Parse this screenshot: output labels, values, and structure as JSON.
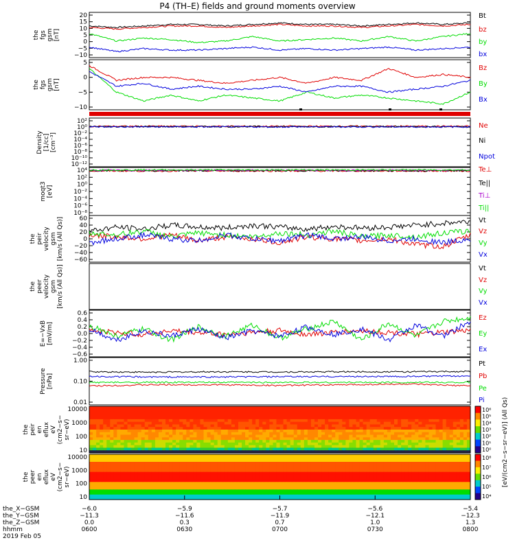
{
  "title": "P4 (TH–E) fields and ground moments overview",
  "colors": {
    "black": "#000000",
    "red": "#e00000",
    "green": "#00dd00",
    "blue": "#0000dd",
    "purple": "#aa00cc",
    "grey": "#888888",
    "orange": "#ff7700"
  },
  "chart_data": [
    {
      "type": "line",
      "ylabel": [
        "the",
        "fgs",
        "gsm",
        "[nT]"
      ],
      "yticks": [
        "20",
        "15",
        "10",
        "5",
        "0",
        "−5",
        "−10"
      ],
      "ylim": [
        -10,
        20
      ],
      "series": [
        {
          "name": "Bt",
          "color": "black",
          "values": [
            11,
            10,
            11,
            12,
            12,
            11,
            12,
            13,
            12,
            12,
            11,
            12,
            13,
            12,
            13
          ]
        },
        {
          "name": "bz",
          "color": "red",
          "values": [
            10,
            9,
            10,
            11,
            11,
            10,
            11,
            12,
            11,
            11,
            10,
            11,
            12,
            11,
            12
          ]
        },
        {
          "name": "by",
          "color": "green",
          "values": [
            6,
            1,
            3,
            2,
            0,
            1,
            4,
            1,
            2,
            3,
            1,
            4,
            1,
            4,
            6
          ]
        },
        {
          "name": "bx",
          "color": "blue",
          "values": [
            -3,
            -6,
            -4,
            -5,
            -5,
            -4,
            -3,
            -5,
            -4,
            -5,
            -4,
            -3,
            -5,
            -4,
            -3
          ]
        }
      ]
    },
    {
      "type": "line",
      "ylabel": [
        "the",
        "fgs",
        "gsm",
        "[nT]"
      ],
      "yticks": [
        "5",
        "0",
        "−5",
        "−10"
      ],
      "ylim": [
        -12,
        5
      ],
      "series": [
        {
          "name": "Bz",
          "color": "red",
          "values": [
            3,
            -2,
            -1,
            -1,
            -2,
            -3,
            -2,
            -1,
            -3,
            -1,
            -2,
            2,
            -1,
            0,
            -1
          ]
        },
        {
          "name": "By",
          "color": "green",
          "values": [
            2,
            -6,
            -9,
            -7,
            -9,
            -7,
            -8,
            -9,
            -6,
            -8,
            -7,
            -8,
            -9,
            -10,
            -6
          ]
        },
        {
          "name": "Bx",
          "color": "blue",
          "values": [
            1,
            -4,
            -3,
            -5,
            -4,
            -5,
            -5,
            -4,
            -6,
            -4,
            -4,
            -6,
            -5,
            -4,
            -2
          ]
        }
      ]
    },
    {
      "type": "line",
      "ylabel": [
        "Density",
        "[1/cc]",
        "[cm⁻³]"
      ],
      "yticks": [
        "10²",
        "10⁰",
        "10⁻²",
        "10⁻⁴",
        "10⁻⁶",
        "10⁻⁸",
        "10⁻¹⁰",
        "10⁻¹²"
      ],
      "log": true,
      "ylim": [
        -13,
        3
      ],
      "series": [
        {
          "name": "Ne",
          "color": "red",
          "values": [
            0.3,
            0.3,
            0.3,
            0.3,
            0.3,
            0.3,
            0.3
          ]
        },
        {
          "name": "Ni",
          "color": "black",
          "values": [
            0.2,
            0.2,
            0.2,
            0.2,
            0.2,
            0.2,
            0.2
          ]
        },
        {
          "name": "Npot",
          "color": "blue",
          "values": [
            0.1,
            0.1,
            0.1,
            0.1,
            0.1,
            0.1,
            0.1
          ]
        }
      ]
    },
    {
      "type": "line",
      "ylabel": [
        "moqt3",
        "[eV]"
      ],
      "yticks": [
        "10⁴",
        "10²",
        "10⁰",
        "10⁻²",
        "10⁻⁴",
        "10⁻⁶",
        "10⁻⁸"
      ],
      "log": true,
      "ylim": [
        -9,
        4.5
      ],
      "series": [
        {
          "name": "Te⊥",
          "color": "red",
          "values": [
            3.5,
            3.5,
            3.5,
            3.5,
            3.5,
            3.5,
            3.5
          ]
        },
        {
          "name": "Te||",
          "color": "black",
          "values": [
            3.6,
            3.6,
            3.6,
            3.6,
            3.6,
            3.6,
            3.6
          ]
        },
        {
          "name": "Ti⊥",
          "color": "purple",
          "values": [
            3.7,
            3.7,
            3.7,
            3.7,
            3.7,
            3.7,
            3.7
          ]
        },
        {
          "name": "Ti||",
          "color": "green",
          "values": [
            3.8,
            3.8,
            3.8,
            3.8,
            3.8,
            3.8,
            3.8
          ]
        }
      ]
    },
    {
      "type": "line",
      "ylabel": [
        "the",
        "peir",
        "velocity",
        "gsm",
        "[km/s (All Qs)]"
      ],
      "yticks": [
        "60",
        "40",
        "20",
        "0",
        "−20",
        "−40",
        "−60"
      ],
      "ylim": [
        -60,
        60
      ],
      "series": [
        {
          "name": "Vt",
          "color": "black",
          "values": [
            20,
            30,
            25,
            35,
            30,
            28,
            35,
            30,
            25,
            32,
            28,
            30,
            35,
            40,
            45
          ]
        },
        {
          "name": "Vz",
          "color": "red",
          "values": [
            10,
            5,
            0,
            10,
            -5,
            5,
            0,
            -10,
            5,
            0,
            -5,
            0,
            -15,
            -20,
            10
          ]
        },
        {
          "name": "Vy",
          "color": "green",
          "values": [
            15,
            10,
            20,
            5,
            15,
            10,
            5,
            15,
            10,
            20,
            5,
            10,
            5,
            15,
            20
          ]
        },
        {
          "name": "Vx",
          "color": "blue",
          "values": [
            -10,
            0,
            10,
            0,
            -5,
            10,
            0,
            -5,
            10,
            0,
            5,
            -5,
            0,
            -10,
            0
          ]
        }
      ]
    },
    {
      "type": "line",
      "ylabel": [
        "the",
        "peer",
        "velocity",
        "gsm",
        "[km/s (All Qs)]"
      ],
      "yticks": [],
      "series": [
        {
          "name": "Vt",
          "color": "black",
          "values": []
        },
        {
          "name": "Vz",
          "color": "red",
          "values": []
        },
        {
          "name": "Vy",
          "color": "green",
          "values": []
        },
        {
          "name": "Vx",
          "color": "blue",
          "values": []
        }
      ]
    },
    {
      "type": "line",
      "ylabel": [
        "E=−VxB",
        "[mV/m]"
      ],
      "yticks": [
        "0.6",
        "0.4",
        "0.2",
        "0.0",
        "−0.2",
        "−0.4",
        "−0.6"
      ],
      "ylim": [
        -0.65,
        0.6
      ],
      "series": [
        {
          "name": "Ez",
          "color": "red",
          "values": [
            0.05,
            0.0,
            -0.05,
            0.05,
            0.0,
            -0.05,
            0.0,
            0.05,
            -0.05,
            0.0,
            0.05,
            0.0,
            -0.05,
            0.0,
            0.05
          ]
        },
        {
          "name": "Ey",
          "color": "green",
          "values": [
            0.2,
            -0.1,
            0.1,
            -0.2,
            0.15,
            -0.1,
            0.2,
            -0.15,
            0.1,
            0.3,
            -0.2,
            0.25,
            -0.1,
            0.3,
            0.4
          ]
        },
        {
          "name": "Ex",
          "color": "blue",
          "values": [
            0.1,
            -0.2,
            0.05,
            -0.1,
            0.1,
            -0.15,
            0.05,
            -0.1,
            0.15,
            -0.05,
            0.1,
            -0.2,
            0.2,
            -0.1,
            0.3
          ]
        }
      ]
    },
    {
      "type": "line",
      "ylabel": [
        "Pressure",
        "[nPa]"
      ],
      "yticks": [
        "1.00",
        "0.10",
        "0.01"
      ],
      "log": true,
      "ylim": [
        -2,
        0
      ],
      "series": [
        {
          "name": "Pt",
          "color": "black",
          "values": [
            -0.6,
            -0.62,
            -0.6,
            -0.61,
            -0.6,
            -0.6,
            -0.59
          ]
        },
        {
          "name": "Pb",
          "color": "red",
          "values": [
            -1.2,
            -1.15,
            -1.15,
            -1.18,
            -1.15,
            -1.12,
            -1.2
          ]
        },
        {
          "name": "Pe",
          "color": "green",
          "values": [
            -1.05,
            -1.05,
            -1.05,
            -1.05,
            -1.05,
            -1.05,
            -1.05
          ]
        },
        {
          "name": "Pi",
          "color": "blue",
          "values": [
            -0.8,
            -0.82,
            -0.82,
            -0.81,
            -0.8,
            -0.8,
            -0.78
          ]
        }
      ]
    },
    {
      "type": "heatmap",
      "ylabel": [
        "the",
        "peir",
        "en",
        "eflux",
        "eV",
        "(cm2−s−",
        "sr−eV)"
      ],
      "yticks": [
        "10000",
        "1000",
        "100",
        "10"
      ],
      "colorbar_ticks": [
        "10⁶",
        "10⁵",
        "10⁴",
        "10³",
        "10²",
        "10¹",
        "10⁰"
      ]
    },
    {
      "type": "heatmap",
      "ylabel": [
        "the",
        "peer",
        "en",
        "eflux",
        "eV",
        "(cm2−s−",
        "sr−eV)"
      ],
      "yticks": [
        "10000",
        "1000",
        "100",
        "10"
      ],
      "colorbar_ticks": [
        "10⁸",
        "10⁷",
        "10⁶",
        "10⁵",
        "10⁴"
      ]
    }
  ],
  "colorbar_label": "[eV/(cm2−s−sr−eV)] (All Qs)",
  "x_axis": {
    "row_labels": [
      "the_X−GSM",
      "the_Y−GSM",
      "the_Z−GSM",
      "hhmm",
      "2019 Feb 05"
    ],
    "ticks": [
      {
        "x": "−6.0",
        "y": "−11.3",
        "z": "0.0",
        "t": "0600"
      },
      {
        "x": "−5.9",
        "y": "−11.6",
        "z": "0.3",
        "t": "0630"
      },
      {
        "x": "−5.7",
        "y": "−11.9",
        "z": "0.7",
        "t": "0700"
      },
      {
        "x": "−5.6",
        "y": "−12.1",
        "z": "1.0",
        "t": "0730"
      },
      {
        "x": "−5.4",
        "y": "−12.3",
        "z": "1.3",
        "t": "0800"
      }
    ]
  }
}
